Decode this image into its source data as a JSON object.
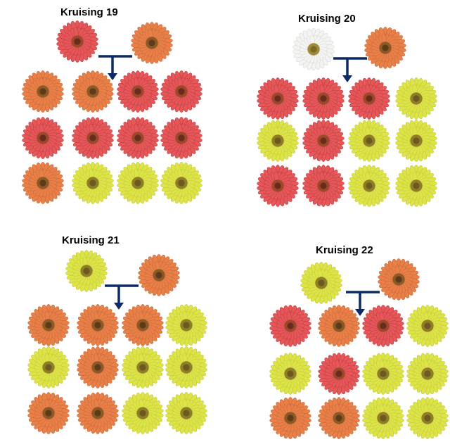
{
  "colors": {
    "red": {
      "petal": "#e4585a",
      "petal_edge": "#c8383f",
      "center": "#6b2a1f",
      "disc": "#9a4a28"
    },
    "orange": {
      "petal": "#e8804a",
      "petal_edge": "#cf6530",
      "center": "#5e3a18",
      "disc": "#8c5a26"
    },
    "yellow": {
      "petal": "#dde44a",
      "petal_edge": "#c3c92f",
      "center": "#6a5a1c",
      "disc": "#8f7d2a"
    },
    "white": {
      "petal": "#f4f4f2",
      "petal_edge": "#d6d6d2",
      "center": "#7a6a2a",
      "disc": "#a08a36"
    },
    "arrow": "#0d2a66"
  },
  "crosses": [
    {
      "title": "Kruising 19",
      "parents": [
        "red",
        "orange"
      ],
      "offspring": [
        [
          "orange",
          "orange",
          "red",
          "red"
        ],
        [
          "red",
          "red",
          "red",
          "red"
        ],
        [
          "orange",
          "yellow",
          "yellow",
          "yellow"
        ]
      ]
    },
    {
      "title": "Kruising 20",
      "parents": [
        "white",
        "orange"
      ],
      "offspring": [
        [
          "red",
          "red",
          "red",
          "yellow"
        ],
        [
          "yellow",
          "red",
          "yellow",
          "yellow"
        ],
        [
          "red",
          "red",
          "yellow",
          "yellow"
        ]
      ]
    },
    {
      "title": "Kruising 21",
      "parents": [
        "yellow",
        "orange"
      ],
      "offspring": [
        [
          "orange",
          "orange",
          "orange",
          "yellow"
        ],
        [
          "yellow",
          "orange",
          "yellow",
          "yellow"
        ],
        [
          "orange",
          "orange",
          "yellow",
          "yellow"
        ]
      ]
    },
    {
      "title": "Kruising 22",
      "parents": [
        "yellow",
        "orange"
      ],
      "offspring": [
        [
          "red",
          "orange",
          "red",
          "yellow"
        ],
        [
          "yellow",
          "red",
          "yellow",
          "yellow"
        ],
        [
          "orange",
          "orange",
          "yellow",
          "yellow"
        ]
      ]
    }
  ]
}
